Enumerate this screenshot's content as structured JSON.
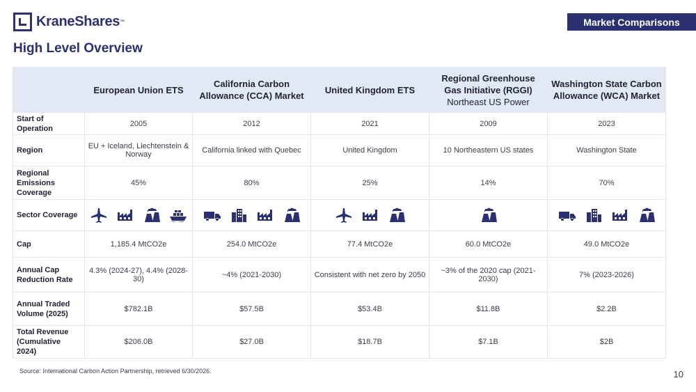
{
  "brand": {
    "name": "KraneShares",
    "tm": "™"
  },
  "header": {
    "tag": "Market Comparisons",
    "title": "High Level Overview"
  },
  "columns": [
    {
      "title": "European Union ETS",
      "subtitle": ""
    },
    {
      "title": "California Carbon Allowance (CCA) Market",
      "subtitle": ""
    },
    {
      "title": "United Kingdom ETS",
      "subtitle": ""
    },
    {
      "title": "Regional Greenhouse Gas Initiative (RGGI)",
      "subtitle": "Northeast US Power"
    },
    {
      "title": "Washington State Carbon Allowance (WCA) Market",
      "subtitle": ""
    }
  ],
  "rows": {
    "start": {
      "label": "Start of Operation",
      "values": [
        "2005",
        "2012",
        "2021",
        "2009",
        "2023"
      ]
    },
    "region": {
      "label": "Region",
      "values": [
        "EU + Iceland, Liechtenstein & Norway",
        "California linked with Quebec",
        "United Kingdom",
        "10 Northeastern US states",
        "Washington State"
      ]
    },
    "coverage": {
      "label": "Regional Emissions Coverage",
      "values": [
        "45%",
        "80%",
        "25%",
        "14%",
        "70%"
      ]
    },
    "sector": {
      "label": "Sector Coverage",
      "icons": [
        [
          "airplane-icon",
          "factory-icon",
          "power-plant-icon",
          "ship-icon"
        ],
        [
          "truck-icon",
          "buildings-icon",
          "factory-icon",
          "power-plant-icon"
        ],
        [
          "airplane-icon",
          "factory-icon",
          "power-plant-icon"
        ],
        [
          "power-plant-icon"
        ],
        [
          "truck-icon",
          "buildings-icon",
          "factory-icon",
          "power-plant-icon"
        ]
      ]
    },
    "cap": {
      "label": "Cap",
      "values": [
        "1,185.4 MtCO2e",
        "254.0 MtCO2e",
        "77.4 MtCO2e",
        "60.0 MtCO2e",
        "49.0 MtCO2e"
      ]
    },
    "reduction": {
      "label": "Annual Cap Reduction Rate",
      "values": [
        "4.3% (2024-27), 4.4% (2028-30)",
        "~4% (2021-2030)",
        "Consistent with net zero by 2050",
        "~3% of the 2020 cap (2021-2030)",
        "7% (2023-2026)"
      ]
    },
    "volume": {
      "label": "Annual Traded Volume (2025)",
      "values": [
        "$782.1B",
        "$57.5B",
        "$53.4B",
        "$11.8B",
        "$2.2B"
      ]
    },
    "revenue": {
      "label": "Total Revenue (Cumulative 2024)",
      "values": [
        "$206.0B",
        "$27.0B",
        "$18.7B",
        "$7.1B",
        "$2B"
      ]
    }
  },
  "footer": {
    "source": "Source: International Carbon Action Partnership, retrieved 6/30/2026.",
    "page": "10"
  }
}
